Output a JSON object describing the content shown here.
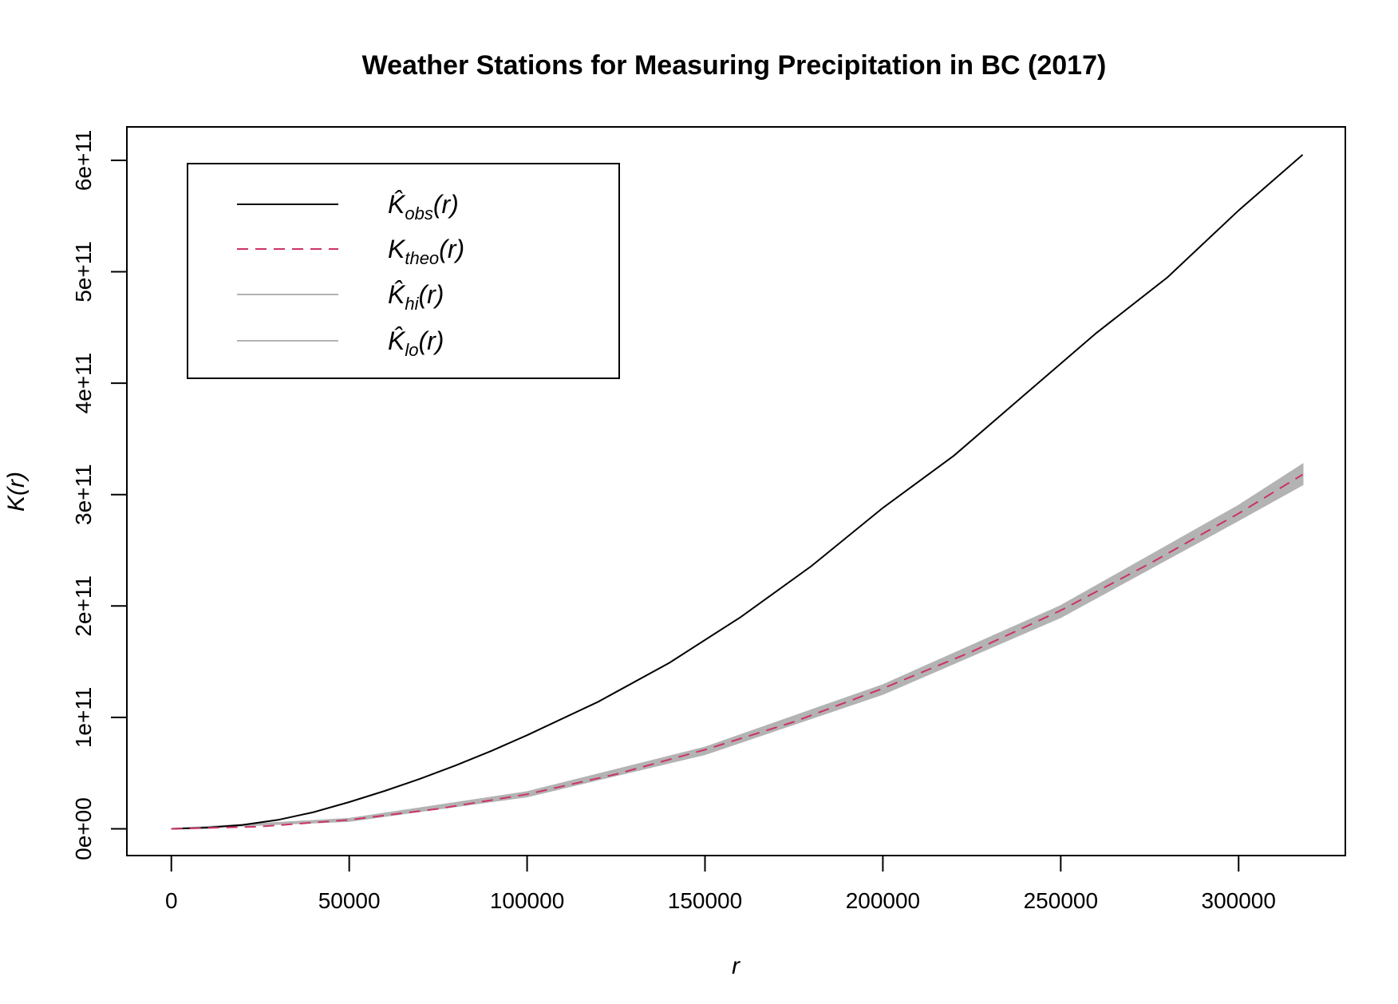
{
  "chart_data": {
    "type": "line",
    "title": "Weather Stations for Measuring Precipitation in BC (2017)",
    "xlabel": "r",
    "ylabel": "K(r)",
    "xlim": [
      -12500,
      330000
    ],
    "ylim": [
      -24000000000,
      630000000000
    ],
    "x_ticks": [
      0,
      50000,
      100000,
      150000,
      200000,
      250000,
      300000
    ],
    "x_tick_labels": [
      "0",
      "50000",
      "100000",
      "150000",
      "200000",
      "250000",
      "300000"
    ],
    "y_ticks": [
      0,
      100000000000,
      200000000000,
      300000000000,
      400000000000,
      500000000000,
      600000000000
    ],
    "y_tick_labels": [
      "0e+00",
      "1e+11",
      "2e+11",
      "3e+11",
      "4e+11",
      "5e+11",
      "6e+11"
    ],
    "grid": false,
    "legend_position": "top-left",
    "envelope": {
      "x": [
        0,
        50000,
        100000,
        150000,
        200000,
        250000,
        300000,
        318000
      ],
      "hi": [
        0,
        9000000000,
        33000000000,
        73000000000,
        129000000000,
        200000000000,
        290000000000,
        327000000000
      ],
      "lo": [
        0,
        7000000000,
        29000000000,
        67000000000,
        121000000000,
        190000000000,
        277000000000,
        309000000000
      ],
      "color": "#b3b3b3"
    },
    "series": [
      {
        "name": "obs",
        "legend_main": "K̂",
        "legend_sub": "obs",
        "legend_suffix": "(r)",
        "color": "#000000",
        "dash": "solid",
        "x": [
          0,
          10000,
          20000,
          30000,
          40000,
          50000,
          60000,
          70000,
          80000,
          90000,
          100000,
          120000,
          140000,
          160000,
          180000,
          200000,
          220000,
          240000,
          260000,
          280000,
          300000,
          318000
        ],
        "y": [
          0,
          1000000000,
          3500000000,
          8000000000,
          15000000000,
          24000000000,
          34000000000,
          45000000000,
          57000000000,
          70000000000,
          84000000000,
          114000000000,
          149000000000,
          190000000000,
          236000000000,
          288000000000,
          335000000000,
          390000000000,
          445000000000,
          495000000000,
          555000000000,
          605000000000
        ]
      },
      {
        "name": "theo",
        "legend_main": "K",
        "legend_sub": "theo",
        "legend_suffix": "(r)",
        "color": "#cc3366",
        "dash": "dashed",
        "x": [
          0,
          25000,
          50000,
          75000,
          100000,
          125000,
          150000,
          175000,
          200000,
          225000,
          250000,
          275000,
          300000,
          318000
        ],
        "y": [
          0,
          2000000000,
          8000000000,
          18000000000,
          31000000000,
          49000000000,
          71000000000,
          96000000000,
          126000000000,
          159000000000,
          196000000000,
          238000000000,
          283000000000,
          318000000000
        ]
      },
      {
        "name": "hi",
        "legend_main": "K̂",
        "legend_sub": "hi",
        "legend_suffix": "(r)",
        "color": "#b3b3b3",
        "dash": "solid"
      },
      {
        "name": "lo",
        "legend_main": "K̂",
        "legend_sub": "lo",
        "legend_suffix": "(r)",
        "color": "#b3b3b3",
        "dash": "solid"
      }
    ]
  }
}
